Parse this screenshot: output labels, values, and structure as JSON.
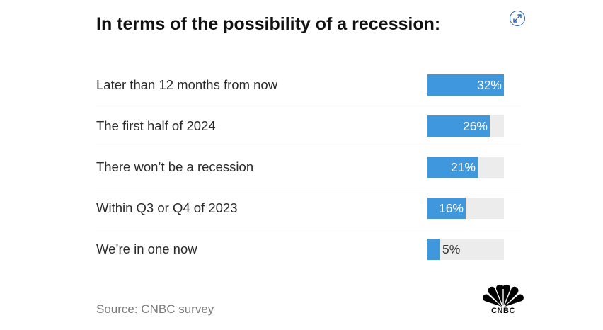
{
  "chart_data": {
    "type": "bar",
    "orientation": "horizontal",
    "title": "In terms of the possibility of a recession:",
    "categories": [
      "Later than 12 months from now",
      "The first half of 2024",
      "There won’t be a recession",
      "Within Q3 or Q4 of 2023",
      "We’re in one now"
    ],
    "values": [
      32,
      26,
      21,
      16,
      5
    ],
    "value_labels": [
      "32%",
      "26%",
      "21%",
      "16%",
      "5%"
    ],
    "xlim": [
      0,
      32
    ],
    "source": "Source: CNBC survey",
    "bar_color": "#3f97dd",
    "track_color": "#ececec"
  },
  "logo": {
    "text": "CNBC"
  },
  "icons": {
    "expand": "expand-icon"
  }
}
